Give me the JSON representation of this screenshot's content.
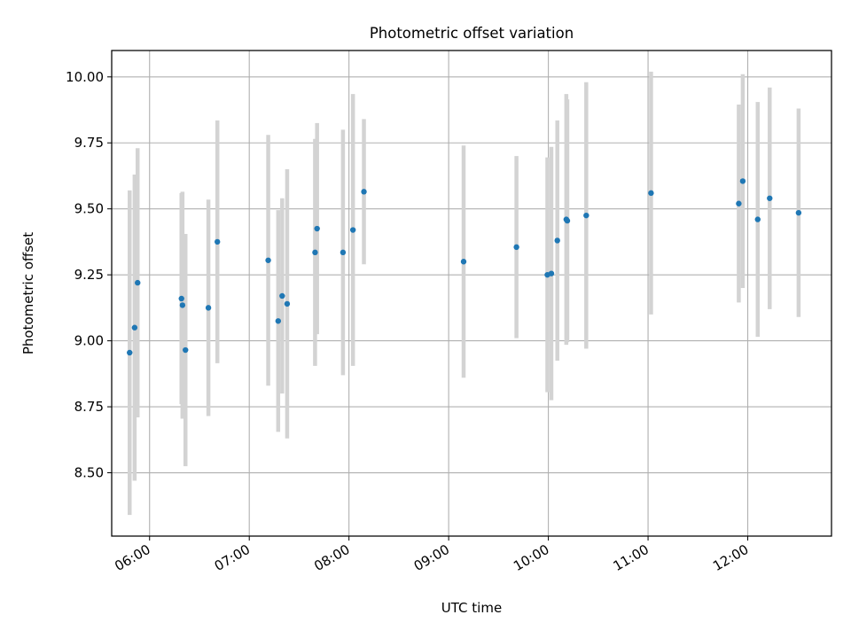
{
  "chart_data": {
    "type": "scatter",
    "title": "Photometric offset variation",
    "xlabel": "UTC time",
    "ylabel": "Photometric offset",
    "xlim": [
      5.62,
      12.84
    ],
    "ylim": [
      8.26,
      10.1
    ],
    "xticks": [
      6,
      7,
      8,
      9,
      10,
      11,
      12
    ],
    "xtick_labels": [
      "06:00",
      "07:00",
      "08:00",
      "09:00",
      "10:00",
      "11:00",
      "12:00"
    ],
    "yticks": [
      8.5,
      8.75,
      9.0,
      9.25,
      9.5,
      9.75,
      10.0
    ],
    "ytick_labels": [
      "8.50",
      "8.75",
      "9.00",
      "9.25",
      "9.50",
      "9.75",
      "10.00"
    ],
    "grid": true,
    "marker_color": "#1f77b4",
    "errorbar_color": "#d3d3d3",
    "points": [
      {
        "x": 5.8,
        "y": 8.955,
        "yerr": 0.615
      },
      {
        "x": 5.85,
        "y": 9.05,
        "yerr": 0.58
      },
      {
        "x": 5.88,
        "y": 9.22,
        "yerr": 0.51
      },
      {
        "x": 6.32,
        "y": 9.16,
        "yerr": 0.4
      },
      {
        "x": 6.33,
        "y": 9.135,
        "yerr": 0.43
      },
      {
        "x": 6.36,
        "y": 8.965,
        "yerr": 0.44
      },
      {
        "x": 6.59,
        "y": 9.125,
        "yerr": 0.41
      },
      {
        "x": 6.68,
        "y": 9.375,
        "yerr": 0.46
      },
      {
        "x": 7.19,
        "y": 9.305,
        "yerr": 0.475
      },
      {
        "x": 7.29,
        "y": 9.075,
        "yerr": 0.42
      },
      {
        "x": 7.33,
        "y": 9.17,
        "yerr": 0.37
      },
      {
        "x": 7.38,
        "y": 9.14,
        "yerr": 0.51
      },
      {
        "x": 7.66,
        "y": 9.335,
        "yerr": 0.43
      },
      {
        "x": 7.68,
        "y": 9.425,
        "yerr": 0.4
      },
      {
        "x": 7.94,
        "y": 9.335,
        "yerr": 0.465
      },
      {
        "x": 8.04,
        "y": 9.42,
        "yerr": 0.515
      },
      {
        "x": 8.15,
        "y": 9.565,
        "yerr": 0.275
      },
      {
        "x": 9.15,
        "y": 9.3,
        "yerr": 0.44
      },
      {
        "x": 9.68,
        "y": 9.355,
        "yerr": 0.345
      },
      {
        "x": 9.99,
        "y": 9.25,
        "yerr": 0.445
      },
      {
        "x": 10.03,
        "y": 9.255,
        "yerr": 0.48
      },
      {
        "x": 10.09,
        "y": 9.38,
        "yerr": 0.455
      },
      {
        "x": 10.18,
        "y": 9.46,
        "yerr": 0.475
      },
      {
        "x": 10.19,
        "y": 9.455,
        "yerr": 0.46
      },
      {
        "x": 10.38,
        "y": 9.475,
        "yerr": 0.505
      },
      {
        "x": 11.03,
        "y": 9.56,
        "yerr": 0.46
      },
      {
        "x": 11.91,
        "y": 9.52,
        "yerr": 0.375
      },
      {
        "x": 11.95,
        "y": 9.605,
        "yerr": 0.405
      },
      {
        "x": 12.1,
        "y": 9.46,
        "yerr": 0.445
      },
      {
        "x": 12.22,
        "y": 9.54,
        "yerr": 0.42
      },
      {
        "x": 12.51,
        "y": 9.485,
        "yerr": 0.395
      }
    ]
  }
}
